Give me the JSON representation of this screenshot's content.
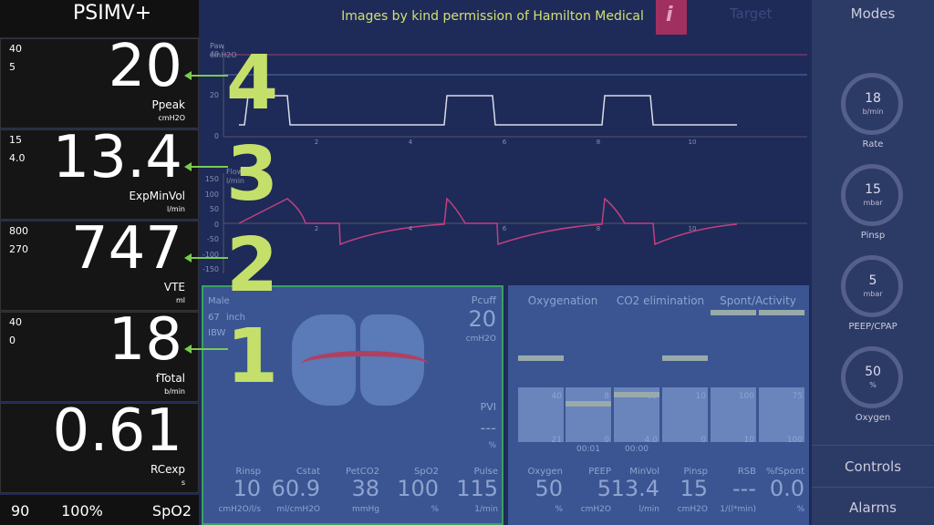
{
  "mode": "PSIMV+",
  "monitors": [
    {
      "high": "40",
      "low": "5",
      "value": "20",
      "name": "Ppeak",
      "unit": "cmH2O"
    },
    {
      "high": "15",
      "low": "4.0",
      "value": "13.4",
      "name": "ExpMinVol",
      "unit": "l/min"
    },
    {
      "high": "800",
      "low": "270",
      "value": "747",
      "name": "VTE",
      "unit": "ml"
    },
    {
      "high": "40",
      "low": "0",
      "value": "18",
      "name": "fTotal",
      "unit": "b/min"
    },
    {
      "value": "0.61",
      "name": "RCexp",
      "unit": "s"
    }
  ],
  "spo2_bar": [
    "90",
    "100%",
    "SpO2"
  ],
  "annotations": [
    "4",
    "3",
    "2",
    "1"
  ],
  "header": {
    "credit": "Images by kind permission of Hamilton Medical",
    "info": "i",
    "target": "Target"
  },
  "waveforms": {
    "paw_title": "Paw",
    "paw_unit": "cmH2O",
    "paw_ticks": [
      "40",
      "20",
      "0"
    ],
    "flow_title": "Flow",
    "flow_unit": "l/min",
    "flow_ticks": [
      "150",
      "100",
      "50",
      "0",
      "-50",
      "-100",
      "-150"
    ],
    "time_ticks": [
      "2",
      "4",
      "6",
      "8",
      "10"
    ]
  },
  "modes": {
    "title": "Modes",
    "controls": [
      {
        "value": "18",
        "unit": "b/min",
        "name": "Rate"
      },
      {
        "value": "15",
        "unit": "mbar",
        "name": "Pinsp"
      },
      {
        "value": "5",
        "unit": "mbar",
        "name": "PEEP/CPAP"
      },
      {
        "value": "50",
        "unit": "%",
        "name": "Oxygen"
      }
    ],
    "controls_tab": "Controls",
    "alarms_tab": "Alarms"
  },
  "lung_panel": {
    "sex": "Male",
    "height": "67",
    "height_unit": "inch",
    "ibw": "IBW",
    "pcuff_name": "Pcuff",
    "pcuff_value": "20",
    "pcuff_unit": "cmH2O",
    "pvi_name": "PVI",
    "pvi_value": "---",
    "pvi_unit": "%",
    "params": [
      {
        "name": "Rinsp",
        "value": "10",
        "unit": "cmH2O/l/s"
      },
      {
        "name": "Cstat",
        "value": "60.9",
        "unit": "ml/cmH2O"
      },
      {
        "name": "PetCO2",
        "value": "38",
        "unit": "mmHg"
      },
      {
        "name": "SpO2",
        "value": "100",
        "unit": "%"
      },
      {
        "name": "Pulse",
        "value": "115",
        "unit": "1/min"
      }
    ]
  },
  "vent_panel": {
    "headers": [
      "Oxygenation",
      "CO2 elimination",
      "Spont/Activity"
    ],
    "bar_labels": [
      [
        "40",
        "21"
      ],
      [
        "8",
        "0",
        "00:01"
      ],
      [
        "15",
        "4.0",
        "00:00"
      ],
      [
        "10",
        "0"
      ],
      [
        "100",
        "10"
      ],
      [
        "75",
        "100"
      ]
    ],
    "params": [
      {
        "name": "Oxygen",
        "value": "50",
        "unit": "%"
      },
      {
        "name": "PEEP",
        "value": "5",
        "unit": "cmH2O"
      },
      {
        "name": "MinVol",
        "value": "13.4",
        "unit": "l/min"
      },
      {
        "name": "Pinsp",
        "value": "15",
        "unit": "cmH2O"
      },
      {
        "name": "RSB",
        "value": "---",
        "unit": "1/(l*min)"
      },
      {
        "name": "%fSpont",
        "value": "0.0",
        "unit": "%"
      }
    ]
  }
}
